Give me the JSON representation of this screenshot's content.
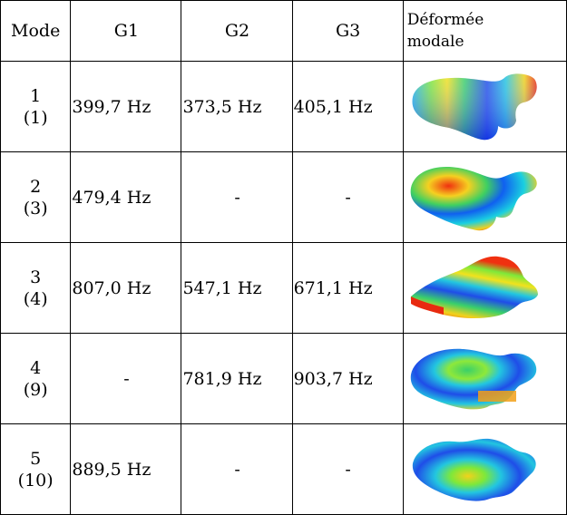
{
  "headers": {
    "mode": "Mode",
    "g1": "G1",
    "g2": "G2",
    "g3": "G3",
    "shape_line1": "Déformée",
    "shape_line2": "modale"
  },
  "rows": [
    {
      "mode": "1",
      "sub": "(1)",
      "g1": "399,7 Hz",
      "g2": "373,5 Hz",
      "g3": "405,1 Hz"
    },
    {
      "mode": "2",
      "sub": "(3)",
      "g1": "479,4 Hz",
      "g2": "-",
      "g3": "-"
    },
    {
      "mode": "3",
      "sub": "(4)",
      "g1": "807,0 Hz",
      "g2": "547,1 Hz",
      "g3": "671,1 Hz"
    },
    {
      "mode": "4",
      "sub": "(9)",
      "g1": "-",
      "g2": "781,9 Hz",
      "g3": "903,7 Hz"
    },
    {
      "mode": "5",
      "sub": "(10)",
      "g1": "889,5 Hz",
      "g2": "-",
      "g3": "-"
    }
  ],
  "shape_images": [
    "mode-shape-1-image",
    "mode-shape-2-image",
    "mode-shape-3-image",
    "mode-shape-4-image",
    "mode-shape-5-image"
  ]
}
